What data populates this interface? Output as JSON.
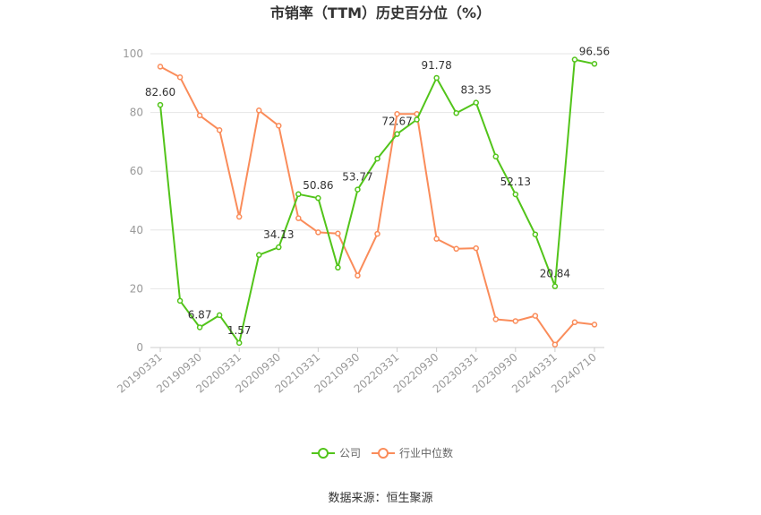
{
  "chart_data": {
    "type": "line",
    "title": "市销率（TTM）历史百分位（%）",
    "ylim": [
      0,
      100
    ],
    "yticks": [
      0,
      20,
      40,
      60,
      80,
      100
    ],
    "x": [
      "20190331",
      "20190630",
      "20190930",
      "20191231",
      "20200331",
      "20200630",
      "20200930",
      "20201231",
      "20210331",
      "20210630",
      "20210930",
      "20211231",
      "20220331",
      "20220630",
      "20220930",
      "20221231",
      "20230331",
      "20230630",
      "20230930",
      "20231231",
      "20240331",
      "20240630",
      "20240710"
    ],
    "xtick_labels": [
      "20190331",
      "20190930",
      "20200331",
      "20200930",
      "20210331",
      "20210930",
      "20220331",
      "20220930",
      "20230331",
      "20230930",
      "20240331",
      "20240710"
    ],
    "grid": "horizontal",
    "legend_position": "bottom",
    "series": [
      {
        "name": "公司",
        "color": "#52c41a",
        "values": [
          82.6,
          15.9,
          6.87,
          11.0,
          1.57,
          31.5,
          34.13,
          52.2,
          50.86,
          27.2,
          53.77,
          64.3,
          72.67,
          77.6,
          91.78,
          79.8,
          83.35,
          65.0,
          52.13,
          38.5,
          20.84,
          98.0,
          96.56
        ],
        "labels": {
          "0": "82.60",
          "2": "6.87",
          "4": "1.57",
          "6": "34.13",
          "8": "50.86",
          "10": "53.77",
          "12": "72.67",
          "14": "91.78",
          "16": "83.35",
          "18": "52.13",
          "20": "20.84",
          "22": "96.56"
        }
      },
      {
        "name": "行业中位数",
        "color": "#fa8c5a",
        "values": [
          95.6,
          92.0,
          79.0,
          74.0,
          44.5,
          80.7,
          75.5,
          44.0,
          39.2,
          38.8,
          24.5,
          38.7,
          79.5,
          79.5,
          37.0,
          33.6,
          33.8,
          9.6,
          9.0,
          10.8,
          1.0,
          8.6,
          7.8
        ]
      }
    ]
  },
  "source_text": "数据来源：恒生聚源"
}
